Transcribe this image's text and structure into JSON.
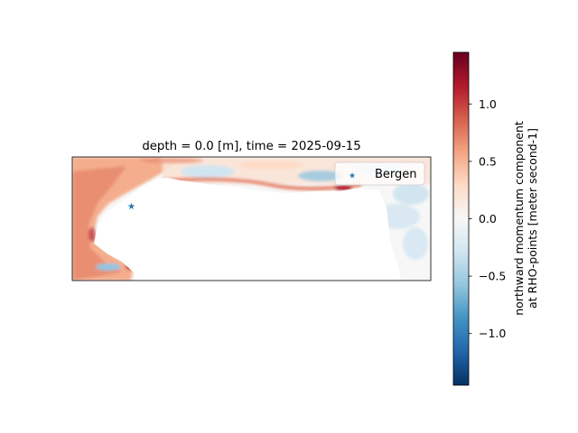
{
  "chart_data": {
    "type": "heatmap",
    "title": "depth = 0.0 [m], time = 2025-09-15",
    "xlabel": "",
    "ylabel": "",
    "colormap": "RdBu_r",
    "colorbar": {
      "label_line1": "northward momentum component",
      "label_line2": "at RHO-points [meter second-1]",
      "vmin": -1.45,
      "vmax": 1.45,
      "ticks": [
        -1.0,
        -0.5,
        0.0,
        0.5,
        1.0
      ],
      "tick_labels": [
        "−1.0",
        "−0.5",
        "0.0",
        "0.5",
        "1.0"
      ]
    },
    "axes_ticks_visible": false,
    "grid": false,
    "legend": {
      "placement": "top-right",
      "entries": [
        {
          "label": "Bergen",
          "marker": "star",
          "color": "#1f77b4"
        }
      ]
    },
    "colors": {
      "neg_strong": "#053061",
      "neg": "#4393c3",
      "zero": "#f7f7f7",
      "pos": "#f4a582",
      "pos_strong": "#67001f",
      "marker": "#1f77b4"
    }
  }
}
